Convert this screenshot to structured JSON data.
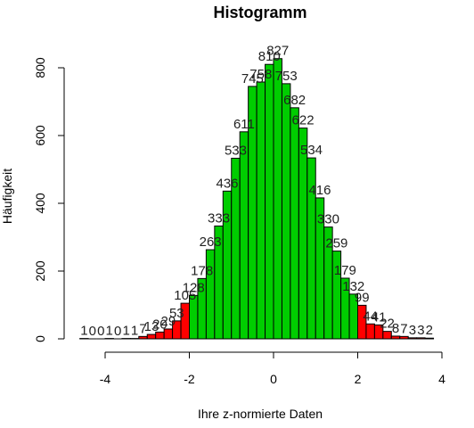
{
  "chart_data": {
    "type": "bar",
    "title": "Histogramm",
    "xlabel": "Ihre z-normierte Daten",
    "ylabel": "Häufigkeit",
    "xlim": [
      -4.5,
      4
    ],
    "ylim": [
      0,
      830
    ],
    "xticks": [
      -4,
      -2,
      0,
      2,
      4
    ],
    "yticks": [
      0,
      200,
      400,
      600,
      800
    ],
    "bin_width": 0.2,
    "bins": [
      {
        "x0": -4.6,
        "value": 1,
        "label": "1"
      },
      {
        "x0": -4.4,
        "value": 0,
        "label": "0"
      },
      {
        "x0": -4.2,
        "value": 0,
        "label": "0"
      },
      {
        "x0": -4.0,
        "value": 1,
        "label": "1"
      },
      {
        "x0": -3.8,
        "value": 0,
        "label": "0"
      },
      {
        "x0": -3.6,
        "value": 1,
        "label": "1"
      },
      {
        "x0": -3.4,
        "value": 1,
        "label": "1"
      },
      {
        "x0": -3.2,
        "value": 7,
        "label": "7"
      },
      {
        "x0": -3.0,
        "value": 13,
        "label": "13"
      },
      {
        "x0": -2.8,
        "value": 20,
        "label": "20"
      },
      {
        "x0": -2.6,
        "value": 29,
        "label": "29"
      },
      {
        "x0": -2.4,
        "value": 53,
        "label": "53"
      },
      {
        "x0": -2.2,
        "value": 105,
        "label": "105"
      },
      {
        "x0": -2.0,
        "value": 128,
        "label": "128"
      },
      {
        "x0": -1.8,
        "value": 178,
        "label": "178"
      },
      {
        "x0": -1.6,
        "value": 263,
        "label": "263"
      },
      {
        "x0": -1.4,
        "value": 333,
        "label": "333"
      },
      {
        "x0": -1.2,
        "value": 436,
        "label": "436"
      },
      {
        "x0": -1.0,
        "value": 533,
        "label": "533"
      },
      {
        "x0": -0.8,
        "value": 611,
        "label": "611"
      },
      {
        "x0": -0.6,
        "value": 745,
        "label": "745"
      },
      {
        "x0": -0.4,
        "value": 758,
        "label": "758"
      },
      {
        "x0": -0.2,
        "value": 810,
        "label": "810"
      },
      {
        "x0": 0.0,
        "value": 827,
        "label": "827"
      },
      {
        "x0": 0.2,
        "value": 753,
        "label": "753"
      },
      {
        "x0": 0.4,
        "value": 682,
        "label": "682"
      },
      {
        "x0": 0.6,
        "value": 622,
        "label": "622"
      },
      {
        "x0": 0.8,
        "value": 534,
        "label": "534"
      },
      {
        "x0": 1.0,
        "value": 416,
        "label": "416"
      },
      {
        "x0": 1.2,
        "value": 330,
        "label": "330"
      },
      {
        "x0": 1.4,
        "value": 259,
        "label": "259"
      },
      {
        "x0": 1.6,
        "value": 179,
        "label": "179"
      },
      {
        "x0": 1.8,
        "value": 132,
        "label": "132"
      },
      {
        "x0": 2.0,
        "value": 99,
        "label": "99"
      },
      {
        "x0": 2.2,
        "value": 44,
        "label": "44"
      },
      {
        "x0": 2.4,
        "value": 41,
        "label": "41"
      },
      {
        "x0": 2.6,
        "value": 22,
        "label": "22"
      },
      {
        "x0": 2.8,
        "value": 8,
        "label": "8"
      },
      {
        "x0": 3.0,
        "value": 7,
        "label": "7"
      },
      {
        "x0": 3.2,
        "value": 3,
        "label": "3"
      },
      {
        "x0": 3.4,
        "value": 3,
        "label": "3"
      },
      {
        "x0": 3.6,
        "value": 2,
        "label": "2"
      }
    ],
    "colors": {
      "tail": "#ff0000",
      "center": "#00cd00",
      "outline": "#000000"
    },
    "center_range": [
      -2.0,
      2.0
    ],
    "grid": false,
    "legend": "none"
  }
}
